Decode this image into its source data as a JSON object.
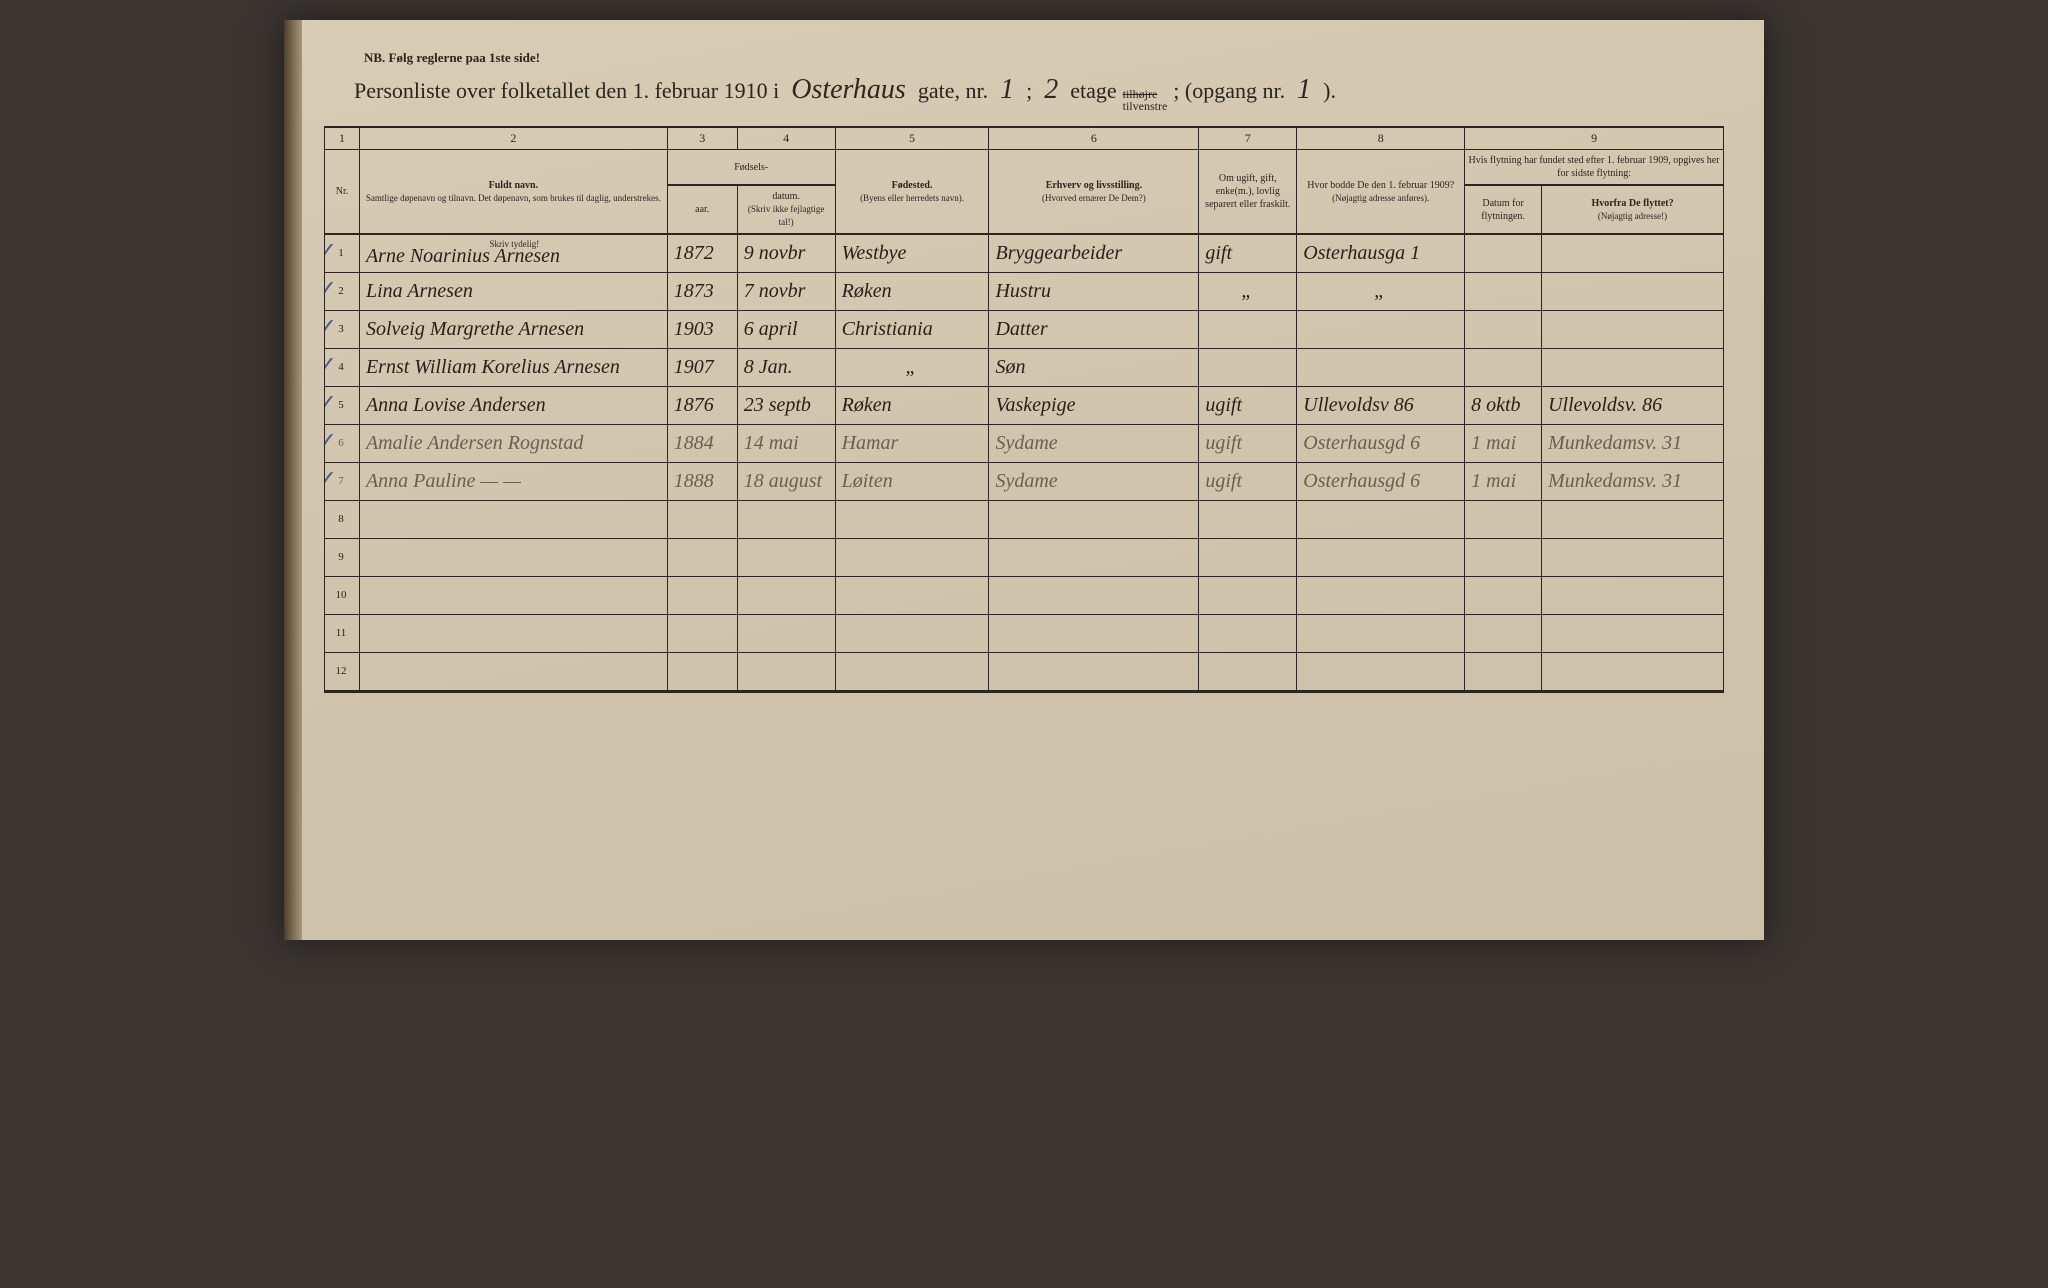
{
  "header_note": "NB.  Følg reglerne paa 1ste side!",
  "title": {
    "prefix": "Personliste over folketallet den 1. februar 1910 i",
    "street": "Osterhaus",
    "street_suffix": "gate, nr.",
    "nr": "1",
    "sep": ";",
    "floor": "2",
    "etage": "etage",
    "tilhoire": "tilhøjre",
    "tilvenstre": "tilvenstre",
    "opgang_prefix": "; (opgang nr.",
    "opgang": "1",
    "closing": ")."
  },
  "columns": {
    "c1": "1",
    "c2": "2",
    "c3": "3",
    "c4": "4",
    "c5": "5",
    "c6": "6",
    "c7": "7",
    "c8": "8",
    "c9": "9"
  },
  "headers": {
    "nr": "Nr.",
    "navn_title": "Fuldt navn.",
    "navn_sub": "Samtlige døpenavn og tilnavn. Det døpenavn, som brukes til daglig, understrekes.",
    "fodsels": "Fødsels-",
    "aar": "aar.",
    "datum": "datum.",
    "fodsels_sub": "(Skriv ikke fejlagtige tal!)",
    "fodested": "Fødested.",
    "fodested_sub": "(Byens eller herredets navn).",
    "erhverv": "Erhverv og livsstilling.",
    "erhverv_sub": "(Hvorved ernærer De Dem?)",
    "civilstand": "Om ugift, gift, enke(m.), lovlig separert eller fraskilt.",
    "bopael": "Hvor bodde De den 1. februar 1909?",
    "bopael_sub": "(Nøjagtig adresse anføres).",
    "flytning": "Hvis flytning har fundet sted efter 1. februar 1909, opgives her for sidste flytning:",
    "datum_flyt": "Datum for flytningen.",
    "hvorfra": "Hvorfra De flyttet?",
    "hvorfra_sub": "(Nøjagtig adresse!)",
    "skriv_tydeligt": "Skriv tydelig!"
  },
  "rows": [
    {
      "nr": "1",
      "navn": "Arne Noarinius Arnesen",
      "aar": "1872",
      "datum": "9 novbr",
      "fodested": "Westbye",
      "erhverv": "Bryggearbeider",
      "civil": "gift",
      "bopael": "Osterhausga 1",
      "flyt_dat": "",
      "hvorfra": "",
      "check": true
    },
    {
      "nr": "2",
      "navn": "Lina Arnesen",
      "aar": "1873",
      "datum": "7 novbr",
      "fodested": "Røken",
      "erhverv": "Hustru",
      "civil": "\"",
      "bopael": "\"",
      "flyt_dat": "",
      "hvorfra": "",
      "check": true
    },
    {
      "nr": "3",
      "navn": "Solveig Margrethe Arnesen",
      "aar": "1903",
      "datum": "6 april",
      "fodested": "Christiania",
      "erhverv": "Datter",
      "civil": "",
      "bopael": "",
      "flyt_dat": "",
      "hvorfra": "",
      "check": true
    },
    {
      "nr": "4",
      "navn": "Ernst William Korelius Arnesen",
      "aar": "1907",
      "datum": "8 Jan.",
      "fodested": "\"",
      "erhverv": "Søn",
      "civil": "",
      "bopael": "",
      "flyt_dat": "",
      "hvorfra": "",
      "check": true
    },
    {
      "nr": "5",
      "navn": "Anna Lovise Andersen",
      "aar": "1876",
      "datum": "23 septb",
      "fodested": "Røken",
      "erhverv": "Vaskepige",
      "civil": "ugift",
      "bopael": "Ullevoldsv 86",
      "flyt_dat": "8 oktb",
      "hvorfra": "Ullevoldsv. 86",
      "check": true
    },
    {
      "nr": "6",
      "navn": "Amalie Andersen Rognstad",
      "aar": "1884",
      "datum": "14 mai",
      "fodested": "Hamar",
      "erhverv": "Sydame",
      "civil": "ugift",
      "bopael": "Osterhausgd 6",
      "flyt_dat": "1 mai",
      "hvorfra": "Munkedamsv. 31",
      "check": true,
      "faint": true
    },
    {
      "nr": "7",
      "navn": "Anna Pauline   —  —",
      "aar": "1888",
      "datum": "18 august",
      "fodested": "Løiten",
      "erhverv": "Sydame",
      "civil": "ugift",
      "bopael": "Osterhausgd 6",
      "flyt_dat": "1 mai",
      "hvorfra": "Munkedamsv. 31",
      "check": true,
      "faint": true
    },
    {
      "nr": "8",
      "navn": "",
      "aar": "",
      "datum": "",
      "fodested": "",
      "erhverv": "",
      "civil": "",
      "bopael": "",
      "flyt_dat": "",
      "hvorfra": ""
    },
    {
      "nr": "9",
      "navn": "",
      "aar": "",
      "datum": "",
      "fodested": "",
      "erhverv": "",
      "civil": "",
      "bopael": "",
      "flyt_dat": "",
      "hvorfra": ""
    },
    {
      "nr": "10",
      "navn": "",
      "aar": "",
      "datum": "",
      "fodested": "",
      "erhverv": "",
      "civil": "",
      "bopael": "",
      "flyt_dat": "",
      "hvorfra": ""
    },
    {
      "nr": "11",
      "navn": "",
      "aar": "",
      "datum": "",
      "fodested": "",
      "erhverv": "",
      "civil": "",
      "bopael": "",
      "flyt_dat": "",
      "hvorfra": ""
    },
    {
      "nr": "12",
      "navn": "",
      "aar": "",
      "datum": "",
      "fodested": "",
      "erhverv": "",
      "civil": "",
      "bopael": "",
      "flyt_dat": "",
      "hvorfra": ""
    }
  ],
  "colwidths": {
    "nr": "2.5%",
    "navn": "22%",
    "aar": "5%",
    "datum": "7%",
    "fodested": "11%",
    "erhverv": "15%",
    "civil": "7%",
    "bopael": "12%",
    "flyt_dat": "5.5%",
    "hvorfra": "13%"
  },
  "colors": {
    "paper": "#d4c8b0",
    "ink": "#2a2520",
    "handwriting": "#2a2018",
    "faint": "#6a5f50",
    "bluecheck": "#4a6090"
  }
}
